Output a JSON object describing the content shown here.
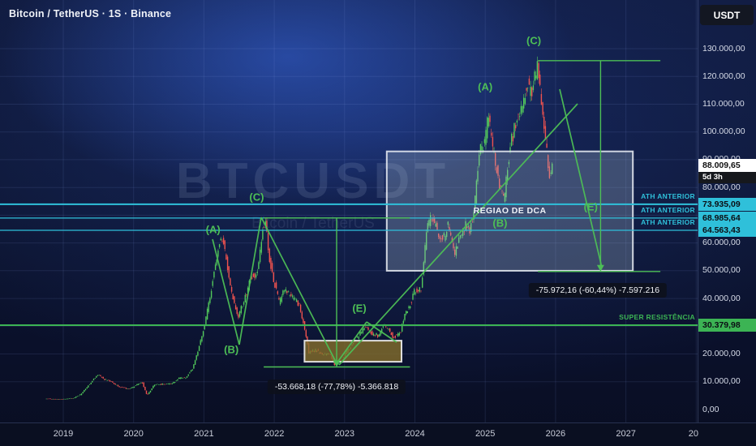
{
  "header": {
    "title": "Bitcoin / TetherUS · 1S · Binance",
    "currency_button": "USDT"
  },
  "watermark": {
    "symbol": "BTCUSDT",
    "name": "Bitcoin / TetherUS"
  },
  "colors": {
    "up": "#52c95b",
    "down": "#f0524e",
    "trend": "#4dbf56",
    "cyan": "#2fc0da",
    "green": "#3cb454",
    "grid": "rgba(140,165,235,0.13)"
  },
  "chart_data": {
    "type": "candlestick",
    "symbol": "BTCUSDT",
    "exchange": "Binance",
    "interval": "1S",
    "ylim": [
      0,
      130000
    ],
    "x_ticks": [
      {
        "label": "2019",
        "t": 0
      },
      {
        "label": "2020",
        "t": 1
      },
      {
        "label": "2021",
        "t": 2
      },
      {
        "label": "2022",
        "t": 3
      },
      {
        "label": "2023",
        "t": 4
      },
      {
        "label": "2024",
        "t": 5
      },
      {
        "label": "2025",
        "t": 6
      },
      {
        "label": "2026",
        "t": 7
      },
      {
        "label": "2027",
        "t": 8
      },
      {
        "label": "20",
        "t": 8.96
      }
    ],
    "y_ticks": [
      {
        "label": "130.000,00",
        "value": 130000
      },
      {
        "label": "120.000,00",
        "value": 120000
      },
      {
        "label": "110.000,00",
        "value": 110000
      },
      {
        "label": "100.000,00",
        "value": 100000
      },
      {
        "label": "90.000,00",
        "value": 90000
      },
      {
        "label": "80.000,00",
        "value": 80000
      },
      {
        "label": "70.000,00",
        "value": 70000
      },
      {
        "label": "60.000,00",
        "value": 60000
      },
      {
        "label": "50.000,00",
        "value": 50000
      },
      {
        "label": "40.000,00",
        "value": 40000
      },
      {
        "label": "30.000,00",
        "value": 30000
      },
      {
        "label": "20.000,00",
        "value": 20000
      },
      {
        "label": "10.000,00",
        "value": 10000
      },
      {
        "label": "0,00",
        "value": 0
      }
    ],
    "current_price": {
      "value": 88009.65,
      "label": "88.009,65",
      "countdown": "5d 3h"
    },
    "anchors": [
      [
        -0.25,
        3900
      ],
      [
        0,
        3700
      ],
      [
        0.15,
        4100
      ],
      [
        0.25,
        5300
      ],
      [
        0.35,
        8200
      ],
      [
        0.5,
        12600
      ],
      [
        0.6,
        10800
      ],
      [
        0.7,
        9800
      ],
      [
        0.8,
        8200
      ],
      [
        0.95,
        7300
      ],
      [
        1.05,
        8800
      ],
      [
        1.13,
        9900
      ],
      [
        1.2,
        5100
      ],
      [
        1.3,
        8800
      ],
      [
        1.45,
        9300
      ],
      [
        1.55,
        9200
      ],
      [
        1.65,
        11200
      ],
      [
        1.75,
        11600
      ],
      [
        1.85,
        14800
      ],
      [
        1.95,
        23500
      ],
      [
        2.02,
        30500
      ],
      [
        2.08,
        38500
      ],
      [
        2.14,
        47500
      ],
      [
        2.2,
        56500
      ],
      [
        2.26,
        63200
      ],
      [
        2.32,
        55500
      ],
      [
        2.4,
        42000
      ],
      [
        2.5,
        33500
      ],
      [
        2.58,
        39500
      ],
      [
        2.68,
        47500
      ],
      [
        2.76,
        49000
      ],
      [
        2.84,
        63500
      ],
      [
        2.88,
        67800
      ],
      [
        2.94,
        54500
      ],
      [
        3.0,
        46800
      ],
      [
        3.08,
        38500
      ],
      [
        3.16,
        43500
      ],
      [
        3.26,
        40500
      ],
      [
        3.36,
        38000
      ],
      [
        3.44,
        29500
      ],
      [
        3.5,
        20500
      ],
      [
        3.6,
        21500
      ],
      [
        3.7,
        19800
      ],
      [
        3.8,
        20200
      ],
      [
        3.87,
        16000
      ],
      [
        3.95,
        16900
      ],
      [
        4.05,
        21200
      ],
      [
        4.15,
        24600
      ],
      [
        4.3,
        29800
      ],
      [
        4.4,
        27200
      ],
      [
        4.5,
        26600
      ],
      [
        4.56,
        30500
      ],
      [
        4.63,
        29200
      ],
      [
        4.7,
        25900
      ],
      [
        4.8,
        27600
      ],
      [
        4.87,
        34600
      ],
      [
        4.95,
        38200
      ],
      [
        5.0,
        42800
      ],
      [
        5.1,
        43600
      ],
      [
        5.18,
        65000
      ],
      [
        5.25,
        69800
      ],
      [
        5.33,
        64200
      ],
      [
        5.41,
        61200
      ],
      [
        5.48,
        66400
      ],
      [
        5.57,
        55800
      ],
      [
        5.65,
        61600
      ],
      [
        5.73,
        66200
      ],
      [
        5.8,
        64800
      ],
      [
        5.87,
        76500
      ],
      [
        5.93,
        93500
      ],
      [
        6.0,
        95500
      ],
      [
        6.05,
        106000
      ],
      [
        6.12,
        94500
      ],
      [
        6.2,
        81500
      ],
      [
        6.28,
        75500
      ],
      [
        6.36,
        94500
      ],
      [
        6.45,
        103800
      ],
      [
        6.52,
        107500
      ],
      [
        6.6,
        118000
      ],
      [
        6.67,
        112500
      ],
      [
        6.75,
        124800
      ],
      [
        6.8,
        111000
      ],
      [
        6.87,
        95500
      ],
      [
        6.92,
        84500
      ],
      [
        6.96,
        88010
      ]
    ],
    "levels": [
      {
        "value": 73935.09,
        "badge": "73.935,09",
        "name": "ATH ANTERIOR",
        "color": "#2fc0da"
      },
      {
        "value": 68985.64,
        "badge": "68.985,64",
        "name": "ATH ANTERIOR",
        "color": "#2fc0da"
      },
      {
        "value": 64563.43,
        "badge": "64.563,43",
        "name": "ATH ANTERIOR",
        "color": "#2fc0da"
      },
      {
        "value": 30379.98,
        "badge": "30.379,98",
        "name": "SUPER RESISTÊNCIA",
        "color": "#3cb454"
      }
    ],
    "zones": [
      {
        "label": "REGIAO DE DCA",
        "t1": 4.6,
        "t2": 8.1,
        "p_low": 50000,
        "p_high": 93000,
        "fill": "rgba(176,196,216,0.28)",
        "stroke": "rgba(238,242,248,0.85)"
      },
      {
        "label": "",
        "t1": 3.43,
        "t2": 4.81,
        "p_low": 17200,
        "p_high": 24800,
        "fill": "rgba(132,110,42,0.8)",
        "stroke": "rgba(240,240,240,0.9)"
      }
    ],
    "waves": [
      {
        "label": "(A)",
        "t": 2.13,
        "price": 64850
      },
      {
        "label": "(B)",
        "t": 2.39,
        "price": 21620
      },
      {
        "label": "(C)",
        "t": 2.75,
        "price": 76540
      },
      {
        "label": "(E)",
        "t": 4.21,
        "price": 36520
      },
      {
        "label": "(A)",
        "t": 6.0,
        "price": 116270
      },
      {
        "label": "(B)",
        "t": 6.21,
        "price": 67190
      },
      {
        "label": "(C)",
        "t": 6.69,
        "price": 132920
      },
      {
        "label": "(E)",
        "t": 7.5,
        "price": 73030
      }
    ],
    "trendlines": [
      {
        "points": [
          [
            2.122,
            61350
          ],
          [
            2.503,
            23370
          ]
        ]
      },
      {
        "points": [
          [
            2.503,
            23370
          ],
          [
            2.814,
            69240
          ]
        ]
      },
      {
        "points": [
          [
            2.814,
            69240
          ],
          [
            3.887,
            16650
          ]
        ]
      },
      {
        "points": [
          [
            3.887,
            16650
          ],
          [
            4.314,
            31550
          ]
        ]
      },
      {
        "points": [
          [
            4.314,
            31550
          ],
          [
            4.74,
            24250
          ]
        ]
      },
      {
        "points": [
          [
            3.922,
            16070
          ],
          [
            7.313,
            110130
          ]
        ]
      },
      {
        "points": [
          [
            7.059,
            115390
          ],
          [
            7.659,
            51120
          ]
        ]
      }
    ],
    "measurements": [
      {
        "text": "-53.668,18 (-77,78%) -5.366.818",
        "t1": 2.85,
        "t2": 4.93,
        "t_arrow": 3.887,
        "p_from": 69003,
        "p_to": 15334,
        "label_t": 3.887,
        "label_p": 8180
      },
      {
        "text": "-75.972,16 (-60,44%) -7.597.216",
        "t1": 6.75,
        "t2": 8.49,
        "t_arrow": 7.64,
        "p_from": 125690,
        "p_to": 49718,
        "label_t": 7.6,
        "label_p": 42940
      }
    ]
  }
}
